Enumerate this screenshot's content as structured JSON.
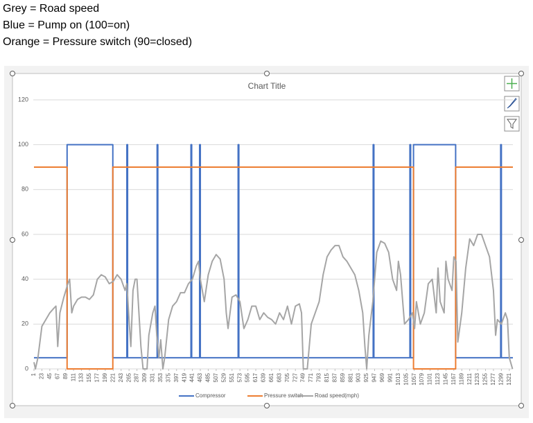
{
  "header": {
    "lines": [
      "Grey = Road speed",
      "Blue = Pump on (100=on)",
      "Orange = Pressure switch (90=closed)"
    ]
  },
  "chart_data": {
    "type": "line",
    "title": "Chart Title",
    "xlim": [
      1,
      1331
    ],
    "xticks": [
      1,
      23,
      45,
      67,
      89,
      111,
      133,
      155,
      177,
      199,
      221,
      243,
      265,
      287,
      309,
      331,
      353,
      375,
      397,
      419,
      441,
      463,
      485,
      507,
      529,
      551,
      573,
      595,
      617,
      639,
      661,
      683,
      705,
      727,
      749,
      771,
      793,
      815,
      837,
      859,
      881,
      903,
      925,
      947,
      969,
      991,
      1013,
      1035,
      1057,
      1079,
      1101,
      1123,
      1145,
      1167,
      1189,
      1211,
      1233,
      1255,
      1277,
      1299,
      1321
    ],
    "ylim": [
      0,
      120
    ],
    "yticks": [
      0,
      20,
      40,
      60,
      80,
      100,
      120
    ],
    "grid": true,
    "legend": "bottom",
    "series": [
      {
        "name": "Compressor",
        "color": "#4472c4",
        "x": [
          1,
          93,
          93,
          220,
          220,
          259,
          259,
          261,
          261,
          343,
          343,
          345,
          345,
          437,
          437,
          439,
          439,
          461,
          461,
          463,
          463,
          568,
          568,
          570,
          570,
          943,
          943,
          945,
          945,
          1045,
          1045,
          1047,
          1047,
          1055,
          1055,
          1172,
          1172,
          1297,
          1297,
          1299,
          1299,
          1331
        ],
        "values": [
          5,
          5,
          100,
          100,
          5,
          5,
          100,
          100,
          5,
          5,
          100,
          100,
          5,
          5,
          100,
          100,
          5,
          5,
          100,
          100,
          5,
          5,
          100,
          100,
          5,
          5,
          100,
          100,
          5,
          5,
          100,
          100,
          5,
          5,
          100,
          100,
          5,
          5,
          100,
          100,
          5,
          5
        ]
      },
      {
        "name": "Pressure switch",
        "color": "#ed7d31",
        "x": [
          1,
          93,
          93,
          220,
          220,
          1055,
          1055,
          1172,
          1172,
          1331
        ],
        "values": [
          90,
          90,
          0,
          0,
          90,
          90,
          0,
          0,
          90,
          90
        ]
      },
      {
        "name": "Road speed(mph)",
        "color": "#a5a5a5",
        "x": [
          1,
          5,
          12,
          23,
          34,
          45,
          56,
          62,
          67,
          73,
          84,
          95,
          100,
          106,
          111,
          122,
          133,
          144,
          155,
          166,
          177,
          188,
          199,
          210,
          221,
          232,
          243,
          254,
          259,
          265,
          270,
          276,
          282,
          287,
          298,
          304,
          315,
          320,
          331,
          337,
          342,
          348,
          353,
          359,
          364,
          375,
          386,
          397,
          408,
          419,
          430,
          441,
          452,
          458,
          463,
          474,
          485,
          496,
          507,
          518,
          529,
          535,
          540,
          551,
          562,
          573,
          584,
          595,
          606,
          617,
          628,
          639,
          650,
          661,
          672,
          683,
          694,
          705,
          716,
          727,
          738,
          744,
          749,
          760,
          771,
          782,
          793,
          804,
          815,
          826,
          837,
          848,
          859,
          870,
          881,
          892,
          903,
          914,
          920,
          925,
          931,
          942,
          953,
          964,
          975,
          986,
          997,
          1008,
          1013,
          1019,
          1030,
          1041,
          1052,
          1058,
          1063,
          1074,
          1085,
          1096,
          1107,
          1118,
          1123,
          1129,
          1140,
          1145,
          1151,
          1162,
          1167,
          1173,
          1178,
          1189,
          1200,
          1211,
          1222,
          1233,
          1244,
          1255,
          1266,
          1277,
          1283,
          1288,
          1299,
          1310,
          1316,
          1321,
          1330
        ],
        "values": [
          3,
          0,
          5,
          19,
          22,
          25,
          27,
          28,
          10,
          25,
          32,
          38,
          40,
          25,
          28,
          31,
          32,
          32,
          31,
          33,
          40,
          42,
          41,
          38,
          39,
          42,
          40,
          35,
          38,
          22,
          10,
          35,
          40,
          40,
          10,
          0,
          0,
          15,
          25,
          28,
          15,
          5,
          13,
          0,
          5,
          22,
          28,
          30,
          34,
          34,
          38,
          40,
          46,
          48,
          40,
          30,
          42,
          48,
          51,
          49,
          40,
          25,
          18,
          32,
          33,
          30,
          18,
          22,
          28,
          28,
          22,
          25,
          23,
          22,
          20,
          25,
          22,
          28,
          20,
          28,
          29,
          25,
          0,
          0,
          20,
          25,
          30,
          42,
          50,
          53,
          55,
          55,
          50,
          48,
          45,
          42,
          35,
          25,
          10,
          0,
          15,
          30,
          52,
          57,
          56,
          52,
          40,
          35,
          48,
          42,
          20,
          22,
          25,
          18,
          30,
          20,
          25,
          38,
          40,
          25,
          45,
          30,
          25,
          48,
          40,
          35,
          50,
          48,
          12,
          25,
          45,
          58,
          55,
          60,
          60,
          55,
          50,
          35,
          15,
          22,
          20,
          25,
          22,
          5,
          0
        ]
      }
    ]
  }
}
